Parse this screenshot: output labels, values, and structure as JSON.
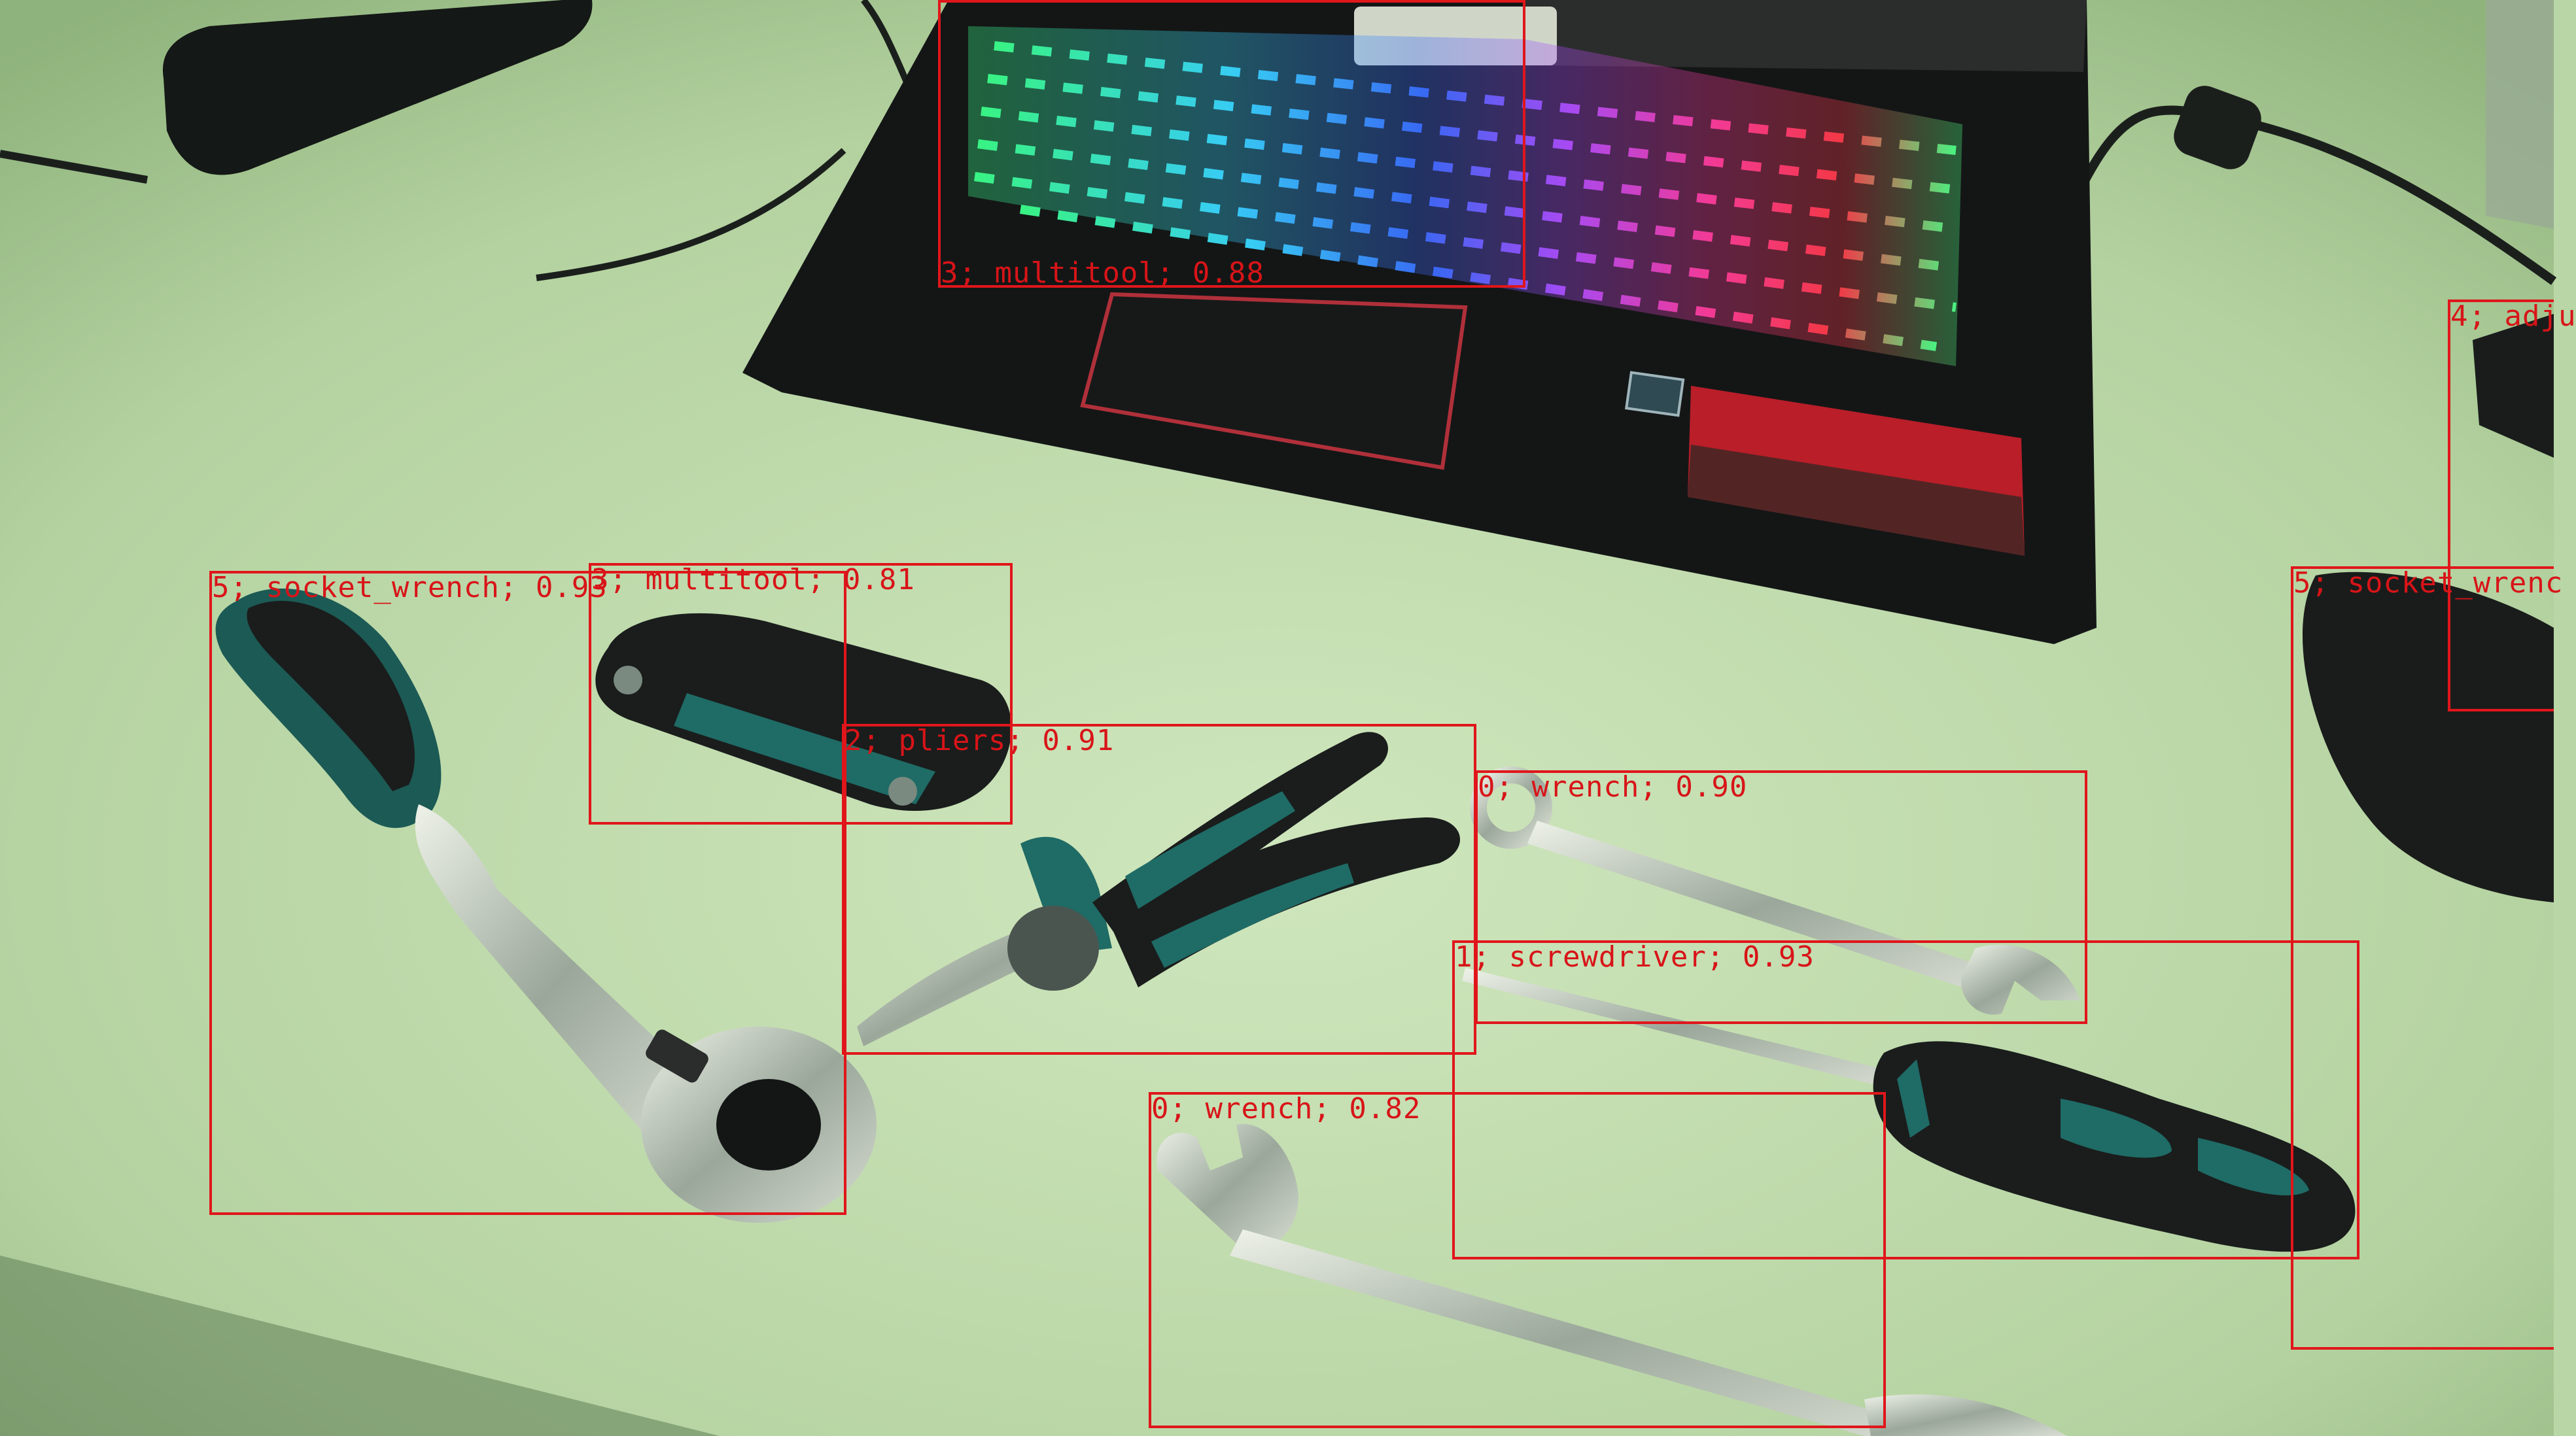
{
  "detections": [
    {
      "label": "3; multitool; 0.88"
    },
    {
      "label": "5; socket_wrench; 0.93"
    },
    {
      "label": "3; multitool; 0.81"
    },
    {
      "label": "2; pliers; 0.91"
    },
    {
      "label": "0; wrench; 0.90"
    },
    {
      "label": "1; screwdriver; 0.93"
    },
    {
      "label": "0; wrench; 0.82"
    },
    {
      "label": "5; socket_wrenc"
    },
    {
      "label": "4; adju"
    }
  ],
  "colors": {
    "desk": "#b9d6a6",
    "box": "#e0161b",
    "laptop": "#141616",
    "tool_teal": "#1f6b66"
  }
}
